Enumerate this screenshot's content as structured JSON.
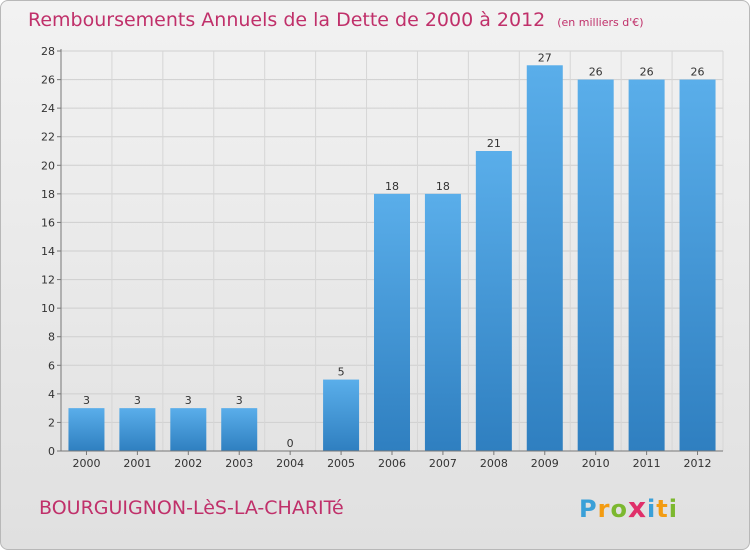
{
  "header": {
    "title": "Remboursements Annuels de la Dette de 2000 à 2012",
    "unit": "(en milliers d'€)"
  },
  "footer": {
    "place": "BOURGUIGNON-LèS-LA-CHARITé",
    "logo": {
      "letters": [
        "P",
        "r",
        "o",
        "x",
        "i",
        "t",
        "i"
      ],
      "colors": [
        "#3aa0d8",
        "#f39c12",
        "#7cb82f",
        "#e0306a",
        "#3aa0d8",
        "#f39c12",
        "#7cb82f"
      ]
    }
  },
  "chart_data": {
    "type": "bar",
    "title": "Remboursements Annuels de la Dette de 2000 à 2012",
    "subtitle": "(en milliers d'€)",
    "xlabel": "",
    "ylabel": "",
    "categories": [
      "2000",
      "2001",
      "2002",
      "2003",
      "2004",
      "2005",
      "2006",
      "2007",
      "2008",
      "2009",
      "2010",
      "2011",
      "2012"
    ],
    "values": [
      3,
      3,
      3,
      3,
      0,
      5,
      18,
      18,
      21,
      27,
      26,
      26,
      26
    ],
    "ylim": [
      0,
      28
    ],
    "yticks": [
      0,
      2,
      4,
      6,
      8,
      10,
      12,
      14,
      16,
      18,
      20,
      22,
      24,
      26,
      28
    ],
    "grid": true,
    "bar_color": "#4a9fe0"
  }
}
